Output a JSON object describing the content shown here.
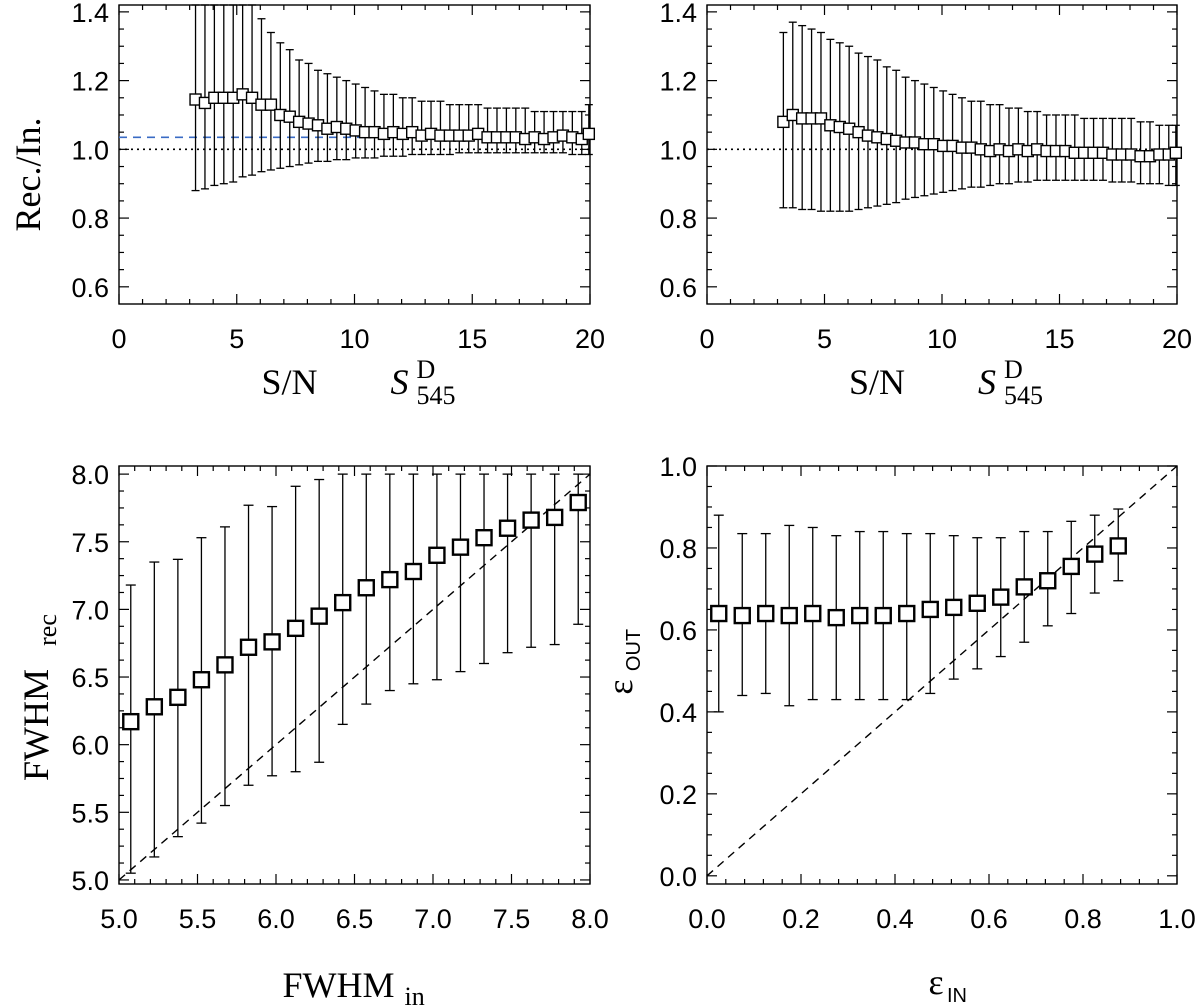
{
  "chart_data": [
    {
      "id": "p1",
      "type": "scatter",
      "title": "",
      "xlabel": "S/N",
      "xlabel2": {
        "symbol": "S",
        "sup": "D",
        "sub": "545"
      },
      "ylabel": "Rec./In.",
      "xlim": [
        0,
        20
      ],
      "ylim": [
        0.55,
        1.42
      ],
      "xticks": [
        0,
        5,
        10,
        15,
        20
      ],
      "yticks": [
        0.6,
        0.8,
        1.0,
        1.2,
        1.4
      ],
      "ytick_labels": [
        "0.6",
        "0.8",
        "1.0",
        "1.2",
        "1.4"
      ],
      "marker": "small-square",
      "reference_lines": [
        {
          "y": 1.0,
          "style": "dotted",
          "color": "#000000"
        },
        {
          "y": 1.035,
          "style": "dashed",
          "color": "#3a6bc4"
        }
      ],
      "points": [
        [
          3.25,
          1.145,
          0.88,
          1.42
        ],
        [
          3.65,
          1.135,
          0.885,
          1.42
        ],
        [
          4.05,
          1.15,
          0.895,
          1.42
        ],
        [
          4.45,
          1.15,
          0.9,
          1.42
        ],
        [
          4.85,
          1.15,
          0.905,
          1.42
        ],
        [
          5.25,
          1.16,
          0.92,
          1.42
        ],
        [
          5.65,
          1.15,
          0.925,
          1.42
        ],
        [
          6.05,
          1.13,
          0.935,
          1.38
        ],
        [
          6.45,
          1.13,
          0.94,
          1.34
        ],
        [
          6.85,
          1.1,
          0.945,
          1.31
        ],
        [
          7.25,
          1.095,
          0.95,
          1.29
        ],
        [
          7.65,
          1.08,
          0.955,
          1.26
        ],
        [
          8.05,
          1.075,
          0.96,
          1.25
        ],
        [
          8.45,
          1.07,
          0.965,
          1.23
        ],
        [
          8.85,
          1.06,
          0.965,
          1.22
        ],
        [
          9.25,
          1.065,
          0.97,
          1.21
        ],
        [
          9.65,
          1.06,
          0.97,
          1.2
        ],
        [
          10.05,
          1.055,
          0.975,
          1.19
        ],
        [
          10.45,
          1.05,
          0.975,
          1.18
        ],
        [
          10.85,
          1.05,
          0.975,
          1.17
        ],
        [
          11.25,
          1.045,
          0.98,
          1.16
        ],
        [
          11.65,
          1.05,
          0.98,
          1.16
        ],
        [
          12.05,
          1.045,
          0.98,
          1.15
        ],
        [
          12.45,
          1.05,
          0.985,
          1.15
        ],
        [
          12.85,
          1.04,
          0.985,
          1.14
        ],
        [
          13.25,
          1.045,
          0.985,
          1.14
        ],
        [
          13.65,
          1.04,
          0.985,
          1.14
        ],
        [
          14.05,
          1.04,
          0.985,
          1.13
        ],
        [
          14.45,
          1.04,
          0.99,
          1.13
        ],
        [
          14.85,
          1.04,
          0.99,
          1.13
        ],
        [
          15.25,
          1.045,
          0.99,
          1.13
        ],
        [
          15.65,
          1.035,
          0.99,
          1.12
        ],
        [
          16.05,
          1.035,
          0.99,
          1.12
        ],
        [
          16.45,
          1.035,
          0.99,
          1.12
        ],
        [
          16.85,
          1.035,
          0.99,
          1.12
        ],
        [
          17.25,
          1.03,
          0.99,
          1.12
        ],
        [
          17.65,
          1.035,
          0.99,
          1.11
        ],
        [
          18.05,
          1.03,
          0.99,
          1.11
        ],
        [
          18.45,
          1.035,
          0.99,
          1.11
        ],
        [
          18.85,
          1.04,
          0.99,
          1.11
        ],
        [
          19.25,
          1.035,
          0.985,
          1.11
        ],
        [
          19.65,
          1.03,
          0.985,
          1.11
        ],
        [
          19.95,
          1.045,
          0.985,
          1.13
        ]
      ]
    },
    {
      "id": "p2",
      "type": "scatter",
      "title": "",
      "xlabel": "S/N",
      "xlabel2": {
        "symbol": "S",
        "sup": "D",
        "sub": "545"
      },
      "ylabel": "",
      "xlim": [
        0,
        20
      ],
      "ylim": [
        0.55,
        1.42
      ],
      "xticks": [
        0,
        5,
        10,
        15,
        20
      ],
      "yticks": [
        0.6,
        0.8,
        1.0,
        1.2,
        1.4
      ],
      "ytick_labels": [
        "0.6",
        "0.8",
        "1.0",
        "1.2",
        "1.4"
      ],
      "marker": "small-square",
      "reference_lines": [
        {
          "y": 1.0,
          "style": "dotted",
          "color": "#000000"
        }
      ],
      "points": [
        [
          3.25,
          1.08,
          0.83,
          1.34
        ],
        [
          3.65,
          1.1,
          0.83,
          1.37
        ],
        [
          4.05,
          1.09,
          0.825,
          1.36
        ],
        [
          4.45,
          1.09,
          0.825,
          1.35
        ],
        [
          4.85,
          1.09,
          0.82,
          1.34
        ],
        [
          5.25,
          1.07,
          0.82,
          1.32
        ],
        [
          5.65,
          1.065,
          0.82,
          1.31
        ],
        [
          6.05,
          1.06,
          0.82,
          1.3
        ],
        [
          6.45,
          1.05,
          0.825,
          1.28
        ],
        [
          6.85,
          1.04,
          0.83,
          1.27
        ],
        [
          7.25,
          1.035,
          0.835,
          1.26
        ],
        [
          7.65,
          1.03,
          0.84,
          1.24
        ],
        [
          8.05,
          1.025,
          0.845,
          1.23
        ],
        [
          8.45,
          1.02,
          0.855,
          1.21
        ],
        [
          8.85,
          1.02,
          0.86,
          1.2
        ],
        [
          9.25,
          1.015,
          0.865,
          1.19
        ],
        [
          9.65,
          1.015,
          0.87,
          1.18
        ],
        [
          10.05,
          1.01,
          0.875,
          1.17
        ],
        [
          10.45,
          1.01,
          0.88,
          1.16
        ],
        [
          10.85,
          1.005,
          0.885,
          1.15
        ],
        [
          11.25,
          1.005,
          0.89,
          1.14
        ],
        [
          11.65,
          1.0,
          0.89,
          1.14
        ],
        [
          12.05,
          0.995,
          0.895,
          1.13
        ],
        [
          12.45,
          1.0,
          0.9,
          1.13
        ],
        [
          12.85,
          0.995,
          0.9,
          1.12
        ],
        [
          13.25,
          1.0,
          0.905,
          1.12
        ],
        [
          13.65,
          0.995,
          0.905,
          1.11
        ],
        [
          14.05,
          1.0,
          0.91,
          1.11
        ],
        [
          14.45,
          0.995,
          0.91,
          1.1
        ],
        [
          14.85,
          0.995,
          0.91,
          1.1
        ],
        [
          15.25,
          0.995,
          0.91,
          1.1
        ],
        [
          15.65,
          0.99,
          0.91,
          1.1
        ],
        [
          16.05,
          0.99,
          0.91,
          1.09
        ],
        [
          16.45,
          0.99,
          0.91,
          1.09
        ],
        [
          16.85,
          0.99,
          0.91,
          1.09
        ],
        [
          17.25,
          0.985,
          0.905,
          1.09
        ],
        [
          17.65,
          0.985,
          0.905,
          1.09
        ],
        [
          18.05,
          0.985,
          0.905,
          1.09
        ],
        [
          18.45,
          0.98,
          0.9,
          1.08
        ],
        [
          18.85,
          0.98,
          0.9,
          1.08
        ],
        [
          19.25,
          0.985,
          0.9,
          1.07
        ],
        [
          19.65,
          0.985,
          0.895,
          1.07
        ],
        [
          19.95,
          0.99,
          0.895,
          1.07
        ]
      ]
    },
    {
      "id": "p3",
      "type": "scatter",
      "title": "",
      "xlabel": "FWHM",
      "xlabel_sub": "in",
      "ylabel": "FWHM",
      "ylabel_sub": "rec",
      "xlim": [
        5.0,
        8.0
      ],
      "ylim": [
        4.97,
        8.06
      ],
      "xticks": [
        5.0,
        5.5,
        6.0,
        6.5,
        7.0,
        7.5,
        8.0
      ],
      "xtick_labels": [
        "5.0",
        "5.5",
        "6.0",
        "6.5",
        "7.0",
        "7.5",
        "8.0"
      ],
      "yticks": [
        5.0,
        5.5,
        6.0,
        6.5,
        7.0,
        7.5,
        8.0
      ],
      "ytick_labels": [
        "5.0",
        "5.5",
        "6.0",
        "6.5",
        "7.0",
        "7.5",
        "8.0"
      ],
      "marker": "large-square",
      "reference_lines": [
        {
          "diagonal": true,
          "style": "dashed",
          "color": "#000000"
        }
      ],
      "points": [
        [
          5.075,
          6.17,
          5.05,
          7.18
        ],
        [
          5.225,
          6.28,
          5.17,
          7.35
        ],
        [
          5.375,
          6.35,
          5.32,
          7.37
        ],
        [
          5.525,
          6.48,
          5.42,
          7.53
        ],
        [
          5.675,
          6.59,
          5.55,
          7.61
        ],
        [
          5.825,
          6.72,
          5.7,
          7.77
        ],
        [
          5.975,
          6.76,
          5.77,
          7.76
        ],
        [
          6.125,
          6.86,
          5.8,
          7.91
        ],
        [
          6.275,
          6.95,
          5.87,
          7.96
        ],
        [
          6.425,
          7.05,
          6.15,
          8.0
        ],
        [
          6.575,
          7.16,
          6.3,
          8.0
        ],
        [
          6.725,
          7.22,
          6.4,
          8.0
        ],
        [
          6.875,
          7.28,
          6.45,
          8.0
        ],
        [
          7.025,
          7.4,
          6.48,
          8.0
        ],
        [
          7.175,
          7.46,
          6.54,
          8.0
        ],
        [
          7.325,
          7.53,
          6.6,
          8.0
        ],
        [
          7.475,
          7.6,
          6.68,
          8.0
        ],
        [
          7.625,
          7.66,
          6.72,
          8.0
        ],
        [
          7.775,
          7.68,
          6.74,
          8.0
        ],
        [
          7.925,
          7.79,
          6.89,
          8.0
        ]
      ]
    },
    {
      "id": "p4",
      "type": "scatter",
      "title": "",
      "xlabel": "ε",
      "xlabel_sub": "IN",
      "ylabel": "ε",
      "ylabel_sub": "OUT",
      "xlim": [
        0.0,
        1.0
      ],
      "ylim": [
        -0.02,
        1.0
      ],
      "xticks": [
        0.0,
        0.2,
        0.4,
        0.6,
        0.8,
        1.0
      ],
      "xtick_labels": [
        "0.0",
        "0.2",
        "0.4",
        "0.6",
        "0.8",
        "1.0"
      ],
      "yticks": [
        0.0,
        0.2,
        0.4,
        0.6,
        0.8,
        1.0
      ],
      "ytick_labels": [
        "0.0",
        "0.2",
        "0.4",
        "0.6",
        "0.8",
        "1.0"
      ],
      "marker": "large-square",
      "reference_lines": [
        {
          "diagonal": true,
          "style": "dashed",
          "color": "#000000"
        }
      ],
      "points": [
        [
          0.025,
          0.64,
          0.4,
          0.88
        ],
        [
          0.075,
          0.635,
          0.44,
          0.835
        ],
        [
          0.125,
          0.64,
          0.445,
          0.835
        ],
        [
          0.175,
          0.635,
          0.415,
          0.855
        ],
        [
          0.225,
          0.64,
          0.43,
          0.85
        ],
        [
          0.275,
          0.63,
          0.43,
          0.83
        ],
        [
          0.325,
          0.635,
          0.43,
          0.84
        ],
        [
          0.375,
          0.635,
          0.43,
          0.84
        ],
        [
          0.425,
          0.64,
          0.43,
          0.835
        ],
        [
          0.475,
          0.65,
          0.445,
          0.835
        ],
        [
          0.525,
          0.655,
          0.48,
          0.83
        ],
        [
          0.575,
          0.665,
          0.505,
          0.825
        ],
        [
          0.625,
          0.68,
          0.535,
          0.825
        ],
        [
          0.675,
          0.705,
          0.57,
          0.84
        ],
        [
          0.725,
          0.72,
          0.61,
          0.84
        ],
        [
          0.775,
          0.755,
          0.64,
          0.865
        ],
        [
          0.825,
          0.785,
          0.69,
          0.88
        ],
        [
          0.875,
          0.805,
          0.72,
          0.895
        ]
      ]
    }
  ]
}
